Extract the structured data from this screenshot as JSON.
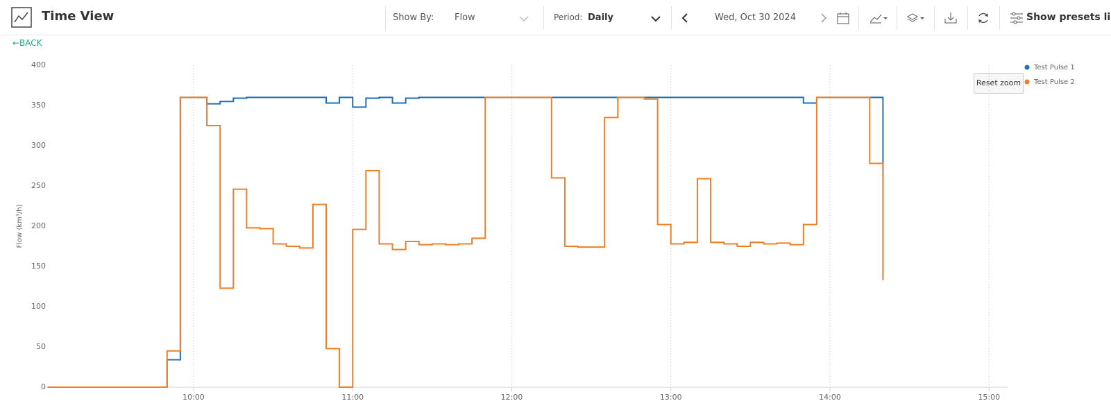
{
  "header": {
    "title": "Time View",
    "show_by_label": "Show By:",
    "show_by_value": "Flow",
    "period_label": "Period:",
    "period_value": "Daily",
    "date": "Wed, Oct 30 2024",
    "presets": "Show presets list",
    "back": "←BACK"
  },
  "reset_zoom": "Reset zoom",
  "chart_data": {
    "type": "line",
    "step": "after",
    "ylabel": "Flow (km³/h)",
    "x": [
      "09:05",
      "09:10",
      "09:15",
      "09:20",
      "09:25",
      "09:30",
      "09:35",
      "09:40",
      "09:45",
      "09:50",
      "09:55",
      "10:00",
      "10:05",
      "10:10",
      "10:15",
      "10:20",
      "10:25",
      "10:30",
      "10:35",
      "10:40",
      "10:45",
      "10:50",
      "10:55",
      "11:00",
      "11:05",
      "11:10",
      "11:15",
      "11:20",
      "11:25",
      "11:30",
      "11:35",
      "11:40",
      "11:45",
      "11:50",
      "11:55",
      "12:00",
      "12:05",
      "12:10",
      "12:15",
      "12:20",
      "12:25",
      "12:30",
      "12:35",
      "12:40",
      "12:45",
      "12:50",
      "12:55",
      "13:00",
      "13:05",
      "13:10",
      "13:15",
      "13:20",
      "13:25",
      "13:30",
      "13:35",
      "13:40",
      "13:45",
      "13:50",
      "13:55",
      "14:00",
      "14:05",
      "14:10",
      "14:15",
      "14:20"
    ],
    "series": [
      {
        "name": "Test Pulse 1",
        "color": "#1f6fb4",
        "values": [
          0,
          0,
          0,
          0,
          0,
          0,
          0,
          0,
          0,
          34,
          360,
          360,
          352,
          355,
          359,
          360,
          360,
          360,
          360,
          360,
          360,
          353,
          360,
          348,
          359,
          360,
          353,
          359,
          360,
          360,
          360,
          360,
          360,
          360,
          360,
          360,
          360,
          360,
          360,
          360,
          360,
          360,
          360,
          360,
          360,
          360,
          360,
          360,
          360,
          360,
          360,
          360,
          360,
          360,
          360,
          360,
          360,
          353,
          360,
          360,
          360,
          360,
          360,
          264
        ]
      },
      {
        "name": "Test Pulse 2",
        "color": "#f07f24",
        "values": [
          0,
          0,
          0,
          0,
          0,
          0,
          0,
          0,
          0,
          45,
          360,
          360,
          325,
          123,
          246,
          198,
          197,
          178,
          175,
          173,
          227,
          48,
          0,
          196,
          269,
          178,
          171,
          181,
          177,
          178,
          177,
          178,
          185,
          360,
          360,
          360,
          360,
          360,
          260,
          175,
          174,
          174,
          335,
          360,
          360,
          358,
          202,
          178,
          180,
          259,
          180,
          178,
          175,
          180,
          178,
          179,
          177,
          202,
          360,
          360,
          360,
          360,
          278,
          133
        ]
      }
    ],
    "xlim": [
      "09:04",
      "15:07"
    ],
    "xticks": [
      "10:00",
      "11:00",
      "12:00",
      "13:00",
      "14:00",
      "15:00"
    ],
    "ylim": [
      0,
      400
    ],
    "yticks": [
      0,
      50,
      100,
      150,
      200,
      250,
      300,
      350,
      400
    ],
    "grid": "x",
    "legend": "top-right"
  }
}
